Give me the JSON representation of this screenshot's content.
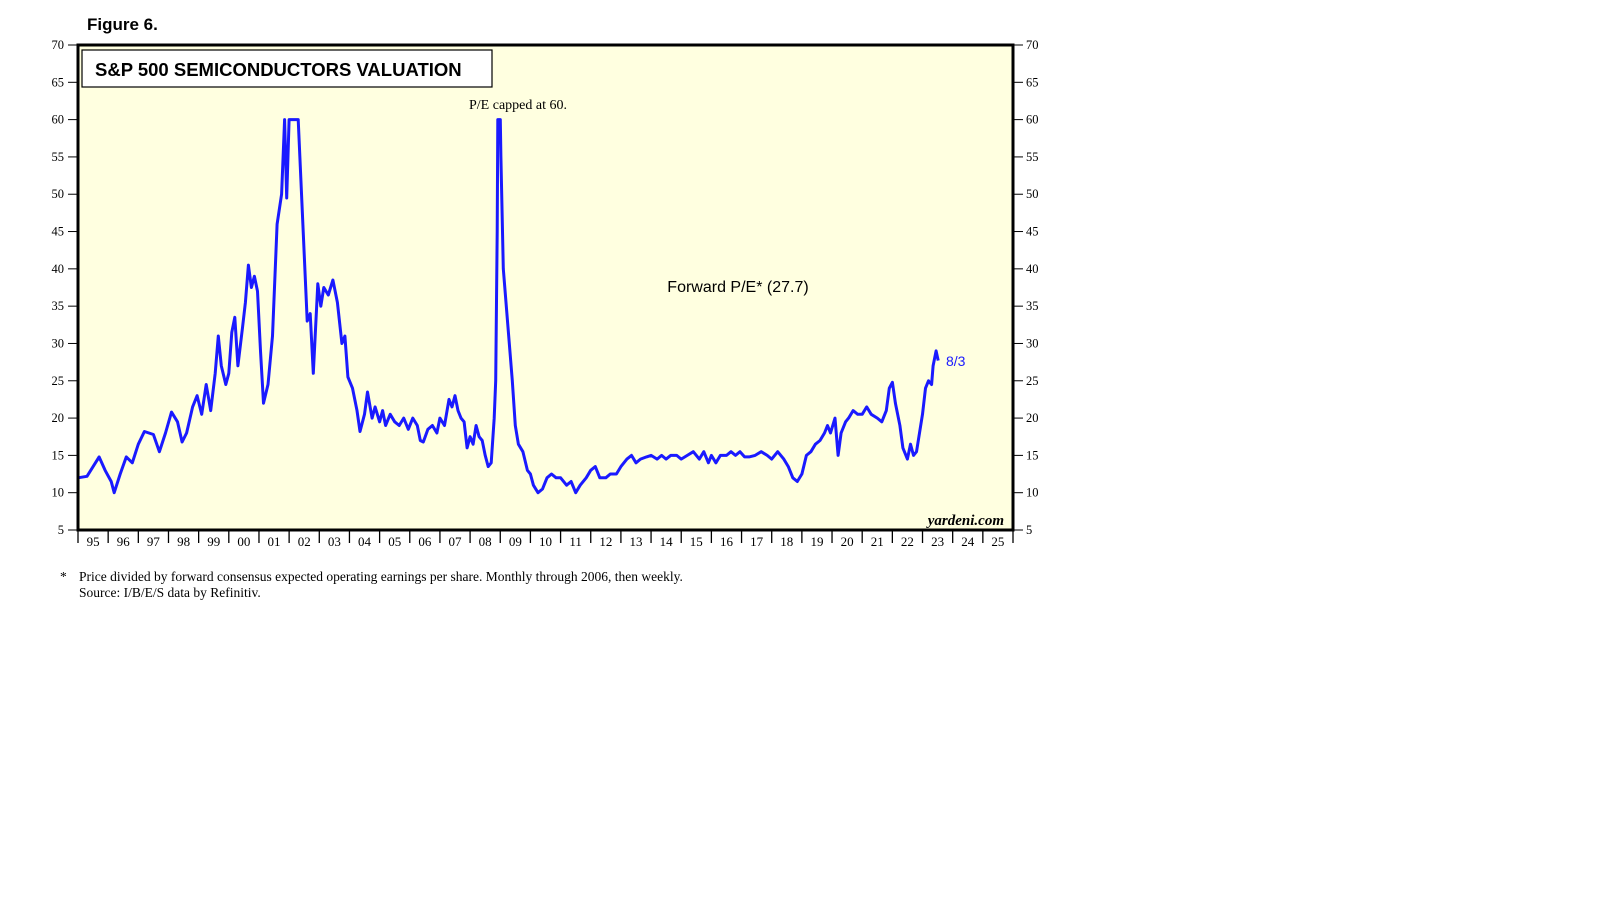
{
  "figure_label": "Figure 6.",
  "footnote": {
    "marker": "*",
    "line1": "Price divided by forward consensus expected operating earnings per share. Monthly through 2006, then weekly.",
    "line2": "Source: I/B/E/S data by Refinitiv."
  },
  "colors": {
    "background": "#ffffe0",
    "line": "#1a1aff",
    "frame": "#000000"
  },
  "chart_data": {
    "type": "line",
    "title": "S&P 500 SEMICONDUCTORS VALUATION",
    "annotations": {
      "cap_note": "P/E capped at 60.",
      "series_label": "Forward P/E* (27.7)",
      "end_label": "8/3",
      "watermark": "yardeni.com"
    },
    "ylim": [
      5,
      70
    ],
    "yticks": [
      5,
      10,
      15,
      20,
      25,
      30,
      35,
      40,
      45,
      50,
      55,
      60,
      65,
      70
    ],
    "xlim": [
      1995,
      2026
    ],
    "xtick_labels": [
      "95",
      "96",
      "97",
      "98",
      "99",
      "00",
      "01",
      "02",
      "03",
      "04",
      "05",
      "06",
      "07",
      "08",
      "09",
      "10",
      "11",
      "12",
      "13",
      "14",
      "15",
      "16",
      "17",
      "18",
      "19",
      "20",
      "21",
      "22",
      "23",
      "24",
      "25"
    ],
    "legend": "none",
    "grid": false,
    "series": [
      {
        "values": [
          [
            1995.0,
            12
          ],
          [
            1995.3,
            12.2
          ],
          [
            1995.5,
            13.5
          ],
          [
            1995.7,
            14.8
          ],
          [
            1995.9,
            13
          ],
          [
            1996.1,
            11.5
          ],
          [
            1996.2,
            10
          ],
          [
            1996.4,
            12.5
          ],
          [
            1996.6,
            14.8
          ],
          [
            1996.8,
            14
          ],
          [
            1997.0,
            16.5
          ],
          [
            1997.2,
            18.2
          ],
          [
            1997.5,
            17.8
          ],
          [
            1997.7,
            15.5
          ],
          [
            1997.9,
            18
          ],
          [
            1998.1,
            20.8
          ],
          [
            1998.3,
            19.5
          ],
          [
            1998.45,
            16.8
          ],
          [
            1998.6,
            18
          ],
          [
            1998.8,
            21.5
          ],
          [
            1998.95,
            23
          ],
          [
            1999.1,
            20.5
          ],
          [
            1999.25,
            24.5
          ],
          [
            1999.4,
            21
          ],
          [
            1999.55,
            26
          ],
          [
            1999.65,
            31
          ],
          [
            1999.75,
            27
          ],
          [
            1999.9,
            24.5
          ],
          [
            2000.0,
            26
          ],
          [
            2000.1,
            31.5
          ],
          [
            2000.2,
            33.5
          ],
          [
            2000.3,
            27
          ],
          [
            2000.45,
            32
          ],
          [
            2000.55,
            35.5
          ],
          [
            2000.65,
            40.5
          ],
          [
            2000.75,
            37.5
          ],
          [
            2000.85,
            39
          ],
          [
            2000.95,
            37
          ],
          [
            2001.05,
            29
          ],
          [
            2001.15,
            22
          ],
          [
            2001.3,
            24.5
          ],
          [
            2001.45,
            31
          ],
          [
            2001.6,
            46
          ],
          [
            2001.75,
            50
          ],
          [
            2001.85,
            60
          ],
          [
            2001.92,
            49.5
          ],
          [
            2002.0,
            60
          ],
          [
            2002.3,
            60
          ],
          [
            2002.5,
            42
          ],
          [
            2002.6,
            33
          ],
          [
            2002.7,
            34
          ],
          [
            2002.8,
            26
          ],
          [
            2002.95,
            38
          ],
          [
            2003.05,
            35
          ],
          [
            2003.15,
            37.5
          ],
          [
            2003.3,
            36.5
          ],
          [
            2003.45,
            38.5
          ],
          [
            2003.6,
            35.5
          ],
          [
            2003.75,
            30
          ],
          [
            2003.85,
            31
          ],
          [
            2003.95,
            25.5
          ],
          [
            2004.1,
            24
          ],
          [
            2004.25,
            21
          ],
          [
            2004.35,
            18.2
          ],
          [
            2004.5,
            20.5
          ],
          [
            2004.6,
            23.5
          ],
          [
            2004.75,
            20
          ],
          [
            2004.85,
            21.5
          ],
          [
            2005.0,
            19.5
          ],
          [
            2005.1,
            21
          ],
          [
            2005.2,
            19
          ],
          [
            2005.35,
            20.5
          ],
          [
            2005.5,
            19.5
          ],
          [
            2005.65,
            19
          ],
          [
            2005.8,
            20
          ],
          [
            2005.95,
            18.5
          ],
          [
            2006.1,
            20
          ],
          [
            2006.25,
            19
          ],
          [
            2006.35,
            17
          ],
          [
            2006.45,
            16.8
          ],
          [
            2006.6,
            18.5
          ],
          [
            2006.75,
            19
          ],
          [
            2006.9,
            18
          ],
          [
            2007.0,
            20
          ],
          [
            2007.15,
            19
          ],
          [
            2007.3,
            22.5
          ],
          [
            2007.4,
            21.5
          ],
          [
            2007.5,
            23
          ],
          [
            2007.6,
            21
          ],
          [
            2007.7,
            20
          ],
          [
            2007.8,
            19.5
          ],
          [
            2007.9,
            16
          ],
          [
            2008.0,
            17.5
          ],
          [
            2008.1,
            16.5
          ],
          [
            2008.2,
            19
          ],
          [
            2008.3,
            17.5
          ],
          [
            2008.4,
            17
          ],
          [
            2008.5,
            15
          ],
          [
            2008.6,
            13.5
          ],
          [
            2008.7,
            14
          ],
          [
            2008.8,
            20
          ],
          [
            2008.85,
            25
          ],
          [
            2008.9,
            45
          ],
          [
            2008.92,
            60
          ],
          [
            2009.0,
            60
          ],
          [
            2009.02,
            55
          ],
          [
            2009.1,
            40
          ],
          [
            2009.2,
            35
          ],
          [
            2009.3,
            30
          ],
          [
            2009.4,
            25
          ],
          [
            2009.5,
            19
          ],
          [
            2009.6,
            16.5
          ],
          [
            2009.75,
            15.5
          ],
          [
            2009.9,
            13
          ],
          [
            2010.0,
            12.5
          ],
          [
            2010.1,
            11
          ],
          [
            2010.25,
            10
          ],
          [
            2010.4,
            10.5
          ],
          [
            2010.55,
            12
          ],
          [
            2010.7,
            12.5
          ],
          [
            2010.85,
            12
          ],
          [
            2011.0,
            12
          ],
          [
            2011.2,
            11
          ],
          [
            2011.35,
            11.5
          ],
          [
            2011.5,
            10
          ],
          [
            2011.65,
            11
          ],
          [
            2011.85,
            12
          ],
          [
            2012.0,
            13
          ],
          [
            2012.15,
            13.5
          ],
          [
            2012.3,
            12
          ],
          [
            2012.5,
            12
          ],
          [
            2012.65,
            12.5
          ],
          [
            2012.85,
            12.5
          ],
          [
            2013.0,
            13.5
          ],
          [
            2013.2,
            14.5
          ],
          [
            2013.35,
            15
          ],
          [
            2013.5,
            14
          ],
          [
            2013.65,
            14.5
          ],
          [
            2013.85,
            14.8
          ],
          [
            2014.0,
            15
          ],
          [
            2014.2,
            14.5
          ],
          [
            2014.35,
            15
          ],
          [
            2014.5,
            14.5
          ],
          [
            2014.65,
            15
          ],
          [
            2014.85,
            15
          ],
          [
            2015.0,
            14.5
          ],
          [
            2015.2,
            15
          ],
          [
            2015.4,
            15.5
          ],
          [
            2015.6,
            14.5
          ],
          [
            2015.75,
            15.5
          ],
          [
            2015.9,
            14
          ],
          [
            2016.0,
            15
          ],
          [
            2016.15,
            14
          ],
          [
            2016.3,
            15
          ],
          [
            2016.5,
            15
          ],
          [
            2016.65,
            15.5
          ],
          [
            2016.8,
            15
          ],
          [
            2016.95,
            15.5
          ],
          [
            2017.1,
            14.8
          ],
          [
            2017.25,
            14.8
          ],
          [
            2017.45,
            15
          ],
          [
            2017.65,
            15.5
          ],
          [
            2017.85,
            15
          ],
          [
            2018.0,
            14.5
          ],
          [
            2018.2,
            15.5
          ],
          [
            2018.4,
            14.5
          ],
          [
            2018.55,
            13.5
          ],
          [
            2018.7,
            12
          ],
          [
            2018.85,
            11.5
          ],
          [
            2019.0,
            12.5
          ],
          [
            2019.15,
            15
          ],
          [
            2019.3,
            15.5
          ],
          [
            2019.45,
            16.5
          ],
          [
            2019.6,
            17
          ],
          [
            2019.75,
            18
          ],
          [
            2019.85,
            19
          ],
          [
            2019.95,
            18
          ],
          [
            2020.1,
            20
          ],
          [
            2020.2,
            15
          ],
          [
            2020.3,
            18
          ],
          [
            2020.45,
            19.5
          ],
          [
            2020.55,
            20
          ],
          [
            2020.7,
            21
          ],
          [
            2020.85,
            20.5
          ],
          [
            2021.0,
            20.5
          ],
          [
            2021.15,
            21.5
          ],
          [
            2021.3,
            20.5
          ],
          [
            2021.5,
            20
          ],
          [
            2021.65,
            19.5
          ],
          [
            2021.8,
            21
          ],
          [
            2021.9,
            24
          ],
          [
            2022.0,
            24.8
          ],
          [
            2022.1,
            22
          ],
          [
            2022.25,
            19
          ],
          [
            2022.35,
            16
          ],
          [
            2022.5,
            14.5
          ],
          [
            2022.6,
            16.5
          ],
          [
            2022.7,
            15
          ],
          [
            2022.8,
            15.5
          ],
          [
            2022.9,
            18
          ],
          [
            2023.0,
            20.5
          ],
          [
            2023.1,
            24
          ],
          [
            2023.2,
            25
          ],
          [
            2023.3,
            24.5
          ],
          [
            2023.35,
            27
          ],
          [
            2023.45,
            29
          ],
          [
            2023.52,
            27.7
          ]
        ]
      }
    ]
  }
}
